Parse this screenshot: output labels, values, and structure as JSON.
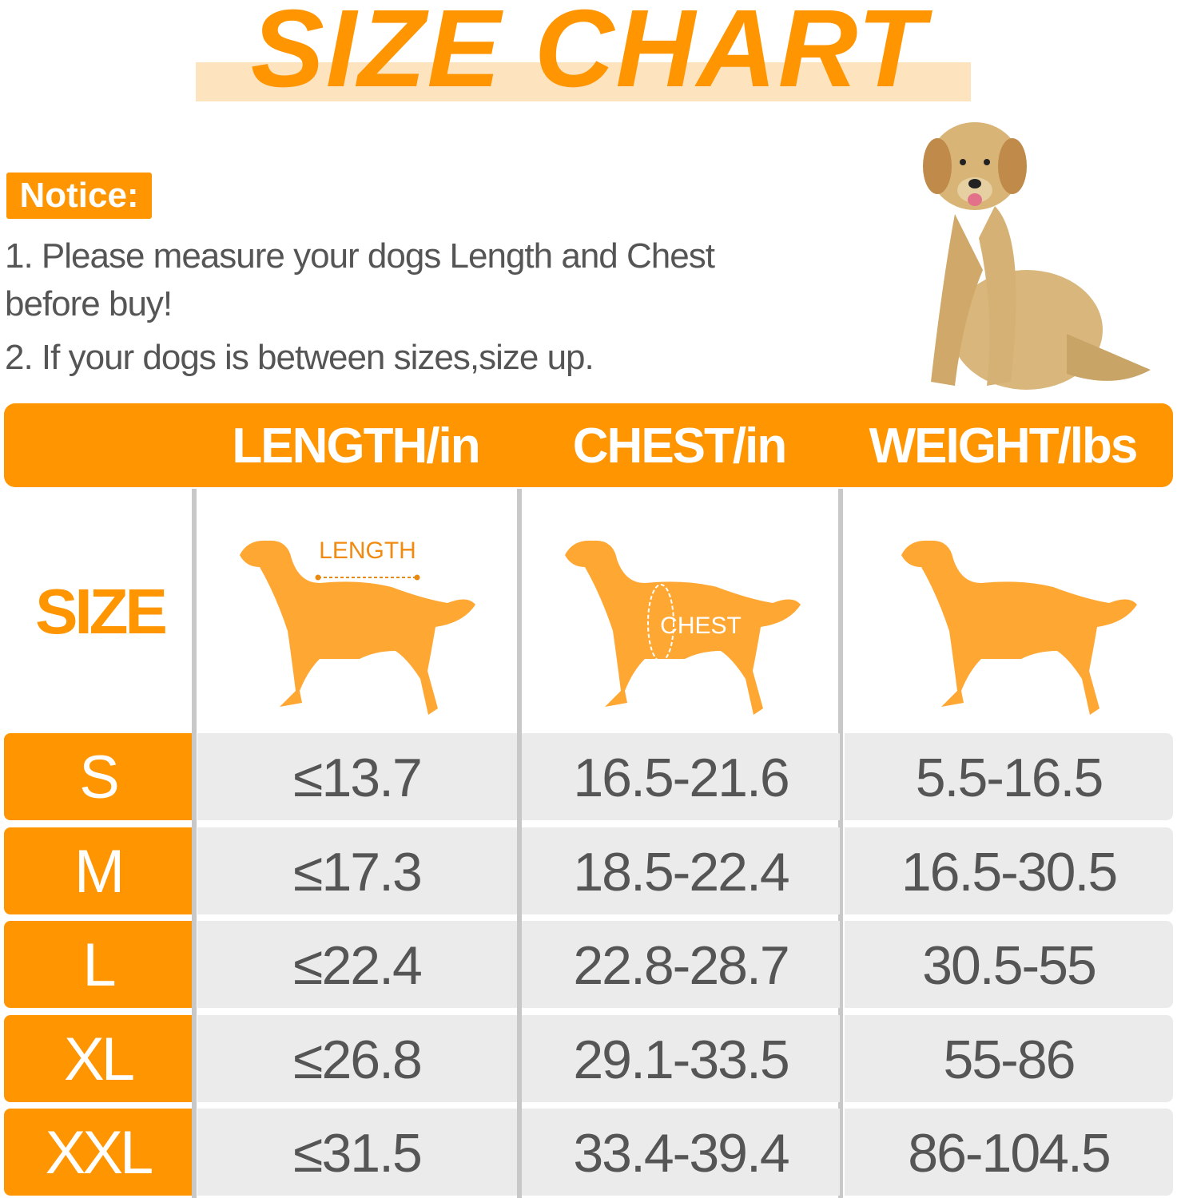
{
  "title": "SIZE CHART",
  "notice": {
    "badge": "Notice:",
    "lines": [
      "1. Please measure your dogs Length and Chest",
      "before buy!",
      "2. If your dogs is between sizes,size up."
    ]
  },
  "table": {
    "columns": [
      "LENGTH/in",
      "CHEST/in",
      "WEIGHT/lbs"
    ],
    "size_label": "SIZE",
    "diagram_labels": {
      "length": "LENGTH",
      "chest": "CHEST"
    },
    "rows": [
      {
        "size": "S",
        "length": "≤13.7",
        "chest": "16.5-21.6",
        "weight": "5.5-16.5"
      },
      {
        "size": "M",
        "length": "≤17.3",
        "chest": "18.5-22.4",
        "weight": "16.5-30.5"
      },
      {
        "size": "L",
        "length": "≤22.4",
        "chest": "22.8-28.7",
        "weight": "30.5-55"
      },
      {
        "size": "XL",
        "length": "≤26.8",
        "chest": "29.1-33.5",
        "weight": "55-86"
      },
      {
        "size": "XXL",
        "length": "≤31.5",
        "chest": "33.4-39.4",
        "weight": "86-104.5"
      }
    ]
  },
  "colors": {
    "accent": "#FF9500",
    "highlight": "#FDE3BE",
    "cell": "#EBEBEB",
    "text": "#555555",
    "silhouette": "#FFA733"
  }
}
